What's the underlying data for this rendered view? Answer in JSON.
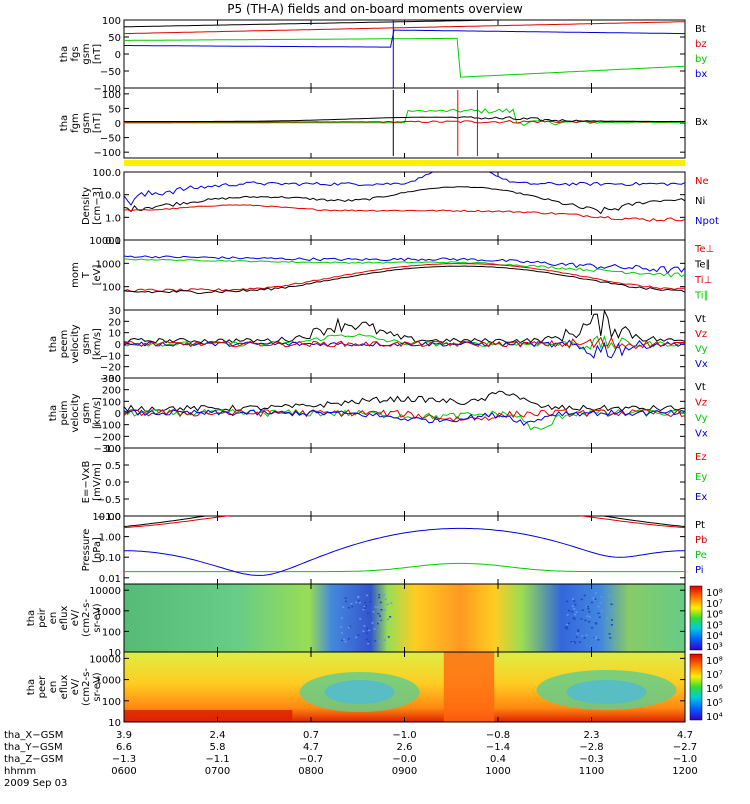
{
  "title": "P5 (TH-A) fields and on-board moments overview",
  "date_label": "2009 Sep 03",
  "colors": {
    "black": "#000000",
    "red": "#e00000",
    "green": "#00cc00",
    "blue": "#0000e0",
    "yellow": "#ffee00",
    "axis": "#000000"
  },
  "chart_data": [
    {
      "type": "line",
      "id": "fgs",
      "ylabel_lines": [
        "tha",
        "fgs",
        "gsm",
        "[nT]"
      ],
      "ylim": [
        -100,
        100
      ],
      "ticks": [
        "100",
        "50",
        "0",
        "−50",
        "−100"
      ],
      "legend": [
        {
          "name": "Bt",
          "color": "#000000"
        },
        {
          "name": "bz",
          "color": "#e00000"
        },
        {
          "name": "by",
          "color": "#00cc00"
        },
        {
          "name": "bx",
          "color": "#0000e0"
        }
      ]
    },
    {
      "type": "line",
      "id": "fgm",
      "ylabel_lines": [
        "tha",
        "fgm",
        "gsm",
        "[nT]"
      ],
      "ylim": [
        -120,
        120
      ],
      "ticks": [
        "100",
        "50",
        "0",
        "−50",
        "−100"
      ],
      "legend": [
        {
          "name": "Bx",
          "color": "#000000"
        }
      ]
    },
    {
      "type": "bar",
      "id": "status-bar",
      "color": "#ffee00"
    },
    {
      "type": "line",
      "id": "density",
      "ylabel_lines": [
        "Density",
        "[cm−3]"
      ],
      "scale": "log",
      "ylim": [
        0.1,
        100.0
      ],
      "ticks": [
        "100.0",
        "10.0",
        "1.0",
        "0.1"
      ],
      "legend": [
        {
          "name": "Ne",
          "color": "#e00000"
        },
        {
          "name": "Ni",
          "color": "#000000"
        },
        {
          "name": "Npot",
          "color": "#0000e0"
        }
      ]
    },
    {
      "type": "line",
      "id": "temperature",
      "ylabel_lines": [
        "mom",
        "T",
        "[eV]"
      ],
      "scale": "log",
      "ylim": [
        10,
        10000
      ],
      "ticks": [
        "10000",
        "1000",
        "100"
      ],
      "legend": [
        {
          "name": "Te⊥",
          "color": "#e00000"
        },
        {
          "name": "Te∥",
          "color": "#000000"
        },
        {
          "name": "Ti⊥",
          "color": "#e00000"
        },
        {
          "name": "Ti∥",
          "color": "#00cc00"
        }
      ]
    },
    {
      "type": "line",
      "id": "peem-velocity",
      "ylabel_lines": [
        "tha",
        "peem",
        "velocity",
        "gsm",
        "[km/s]"
      ],
      "ylim": [
        -30,
        30
      ],
      "ticks": [
        "30",
        "20",
        "10",
        "0",
        "−10",
        "−20",
        "−30"
      ],
      "legend": [
        {
          "name": "Vt",
          "color": "#000000"
        },
        {
          "name": "Vz",
          "color": "#e00000"
        },
        {
          "name": "Vy",
          "color": "#00cc00"
        },
        {
          "name": "Vx",
          "color": "#0000e0"
        }
      ]
    },
    {
      "type": "line",
      "id": "peim-velocity",
      "ylabel_lines": [
        "tha",
        "peim",
        "velocity",
        "gsm",
        "[km/s]"
      ],
      "ylim": [
        -300,
        300
      ],
      "ticks": [
        "300",
        "200",
        "100",
        "0",
        "−100",
        "−200",
        "−300"
      ],
      "legend": [
        {
          "name": "Vt",
          "color": "#000000"
        },
        {
          "name": "Vz",
          "color": "#e00000"
        },
        {
          "name": "Vy",
          "color": "#00cc00"
        },
        {
          "name": "Vx",
          "color": "#0000e0"
        }
      ]
    },
    {
      "type": "line",
      "id": "efield",
      "ylabel_lines": [
        "E=−VxB",
        "[mV/m]"
      ],
      "ylim": [
        -1.0,
        1.0
      ],
      "ticks": [
        "1.0",
        "0.5",
        "0.0",
        "−0.5",
        "−1.0"
      ],
      "legend": [
        {
          "name": "Ez",
          "color": "#e00000"
        },
        {
          "name": "Ey",
          "color": "#00cc00"
        },
        {
          "name": "Ex",
          "color": "#0000e0"
        }
      ]
    },
    {
      "type": "line",
      "id": "pressure",
      "ylabel_lines": [
        "Pressure",
        "[nPa]"
      ],
      "scale": "log",
      "ylim": [
        0.005,
        10.0
      ],
      "ticks": [
        "10.00",
        "1.00",
        "0.10",
        "0.01"
      ],
      "legend": [
        {
          "name": "Pt",
          "color": "#000000"
        },
        {
          "name": "Pb",
          "color": "#e00000"
        },
        {
          "name": "Pe",
          "color": "#00cc00"
        },
        {
          "name": "Pi",
          "color": "#0000e0"
        }
      ]
    },
    {
      "type": "heatmap",
      "id": "peir-spectrogram",
      "ylabel_lines": [
        "tha",
        "peir",
        "en",
        "eflux",
        "eV/",
        "(cm2-s-",
        "sr-eV)"
      ],
      "scale": "log",
      "ylim": [
        10,
        20000
      ],
      "ticks": [
        "10000",
        "1000",
        "100",
        "10"
      ],
      "colorbar_ticks": [
        "10⁸",
        "10⁷",
        "10⁶",
        "10⁵",
        "10⁴",
        "10³"
      ]
    },
    {
      "type": "heatmap",
      "id": "peer-spectrogram",
      "ylabel_lines": [
        "tha",
        "peer",
        "en",
        "eflux",
        "eV/",
        "(cm2-s-",
        "sr-eV)"
      ],
      "scale": "log",
      "ylim": [
        10,
        20000
      ],
      "ticks": [
        "10000",
        "1000",
        "100",
        "10"
      ],
      "colorbar_ticks": [
        "10⁸",
        "10⁷",
        "10⁶",
        "10⁵",
        "10⁴"
      ]
    }
  ],
  "x_axis": {
    "rows": [
      {
        "label": "tha_X−GSM",
        "values": [
          "3.9",
          "2.4",
          "0.7",
          "−1.0",
          "−0.8",
          "2.3",
          "4.7"
        ]
      },
      {
        "label": "tha_Y−GSM",
        "values": [
          "6.6",
          "5.8",
          "4.7",
          "2.6",
          "−1.4",
          "−2.8",
          "−2.7"
        ]
      },
      {
        "label": "tha_Z−GSM",
        "values": [
          "−1.3",
          "−1.1",
          "−0.7",
          "−0.0",
          "0.4",
          "−0.3",
          "−1.0"
        ]
      },
      {
        "label": "hhmm",
        "values": [
          "0600",
          "0700",
          "0800",
          "0900",
          "1000",
          "1100",
          "1200"
        ]
      }
    ]
  }
}
